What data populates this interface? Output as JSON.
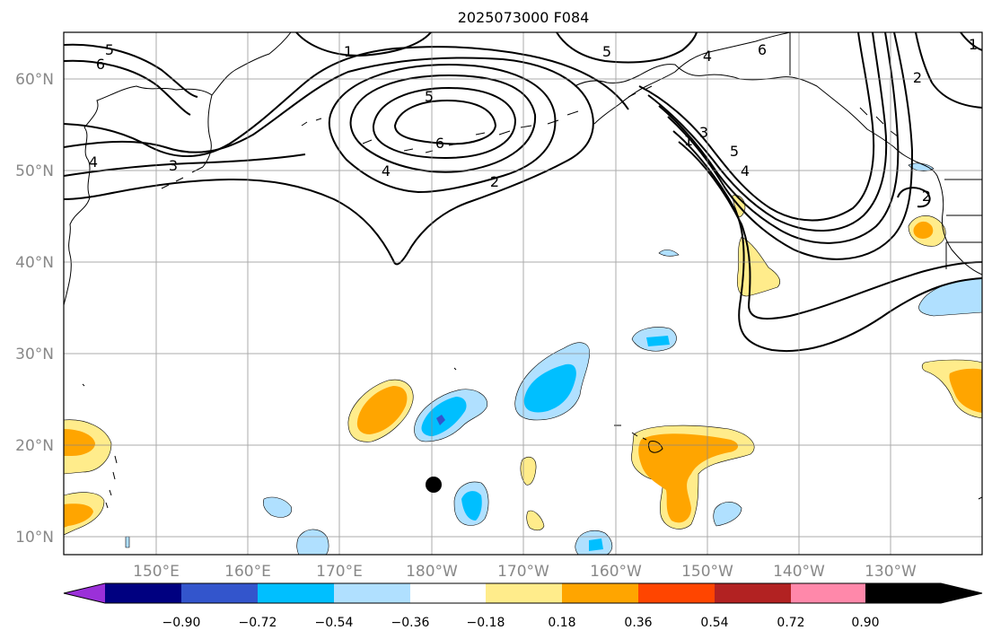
{
  "title": "2025073000 F084",
  "lat_labels": [
    "60°N",
    "50°N",
    "40°N",
    "30°N",
    "20°N",
    "10°N"
  ],
  "lon_labels": [
    "150°E",
    "160°E",
    "170°E",
    "180°W",
    "170°W",
    "160°W",
    "150°W",
    "140°W",
    "130°W"
  ],
  "colorbar": {
    "colors": [
      "#9b30d9",
      "#000080",
      "#3355cc",
      "#00bfff",
      "#b0e0ff",
      "#ffffff",
      "#ffec8b",
      "#ffa500",
      "#ff4500",
      "#b22222",
      "#ff88aa"
    ],
    "labels": [
      "−0.90",
      "−0.72",
      "−0.54",
      "−0.36",
      "−0.18",
      "0.18",
      "0.36",
      "0.54",
      "0.72",
      "0.90"
    ]
  },
  "contour_labels": [
    {
      "text": "5"
    },
    {
      "text": "6"
    },
    {
      "text": "1"
    },
    {
      "text": "5"
    },
    {
      "text": "6"
    },
    {
      "text": "4"
    },
    {
      "text": "2"
    },
    {
      "text": "4"
    },
    {
      "text": "3"
    },
    {
      "text": "4"
    },
    {
      "text": "6"
    },
    {
      "text": "5"
    },
    {
      "text": "1"
    },
    {
      "text": "3"
    },
    {
      "text": "5"
    },
    {
      "text": "4"
    },
    {
      "text": "2"
    },
    {
      "text": "2"
    },
    {
      "text": "1"
    }
  ]
}
